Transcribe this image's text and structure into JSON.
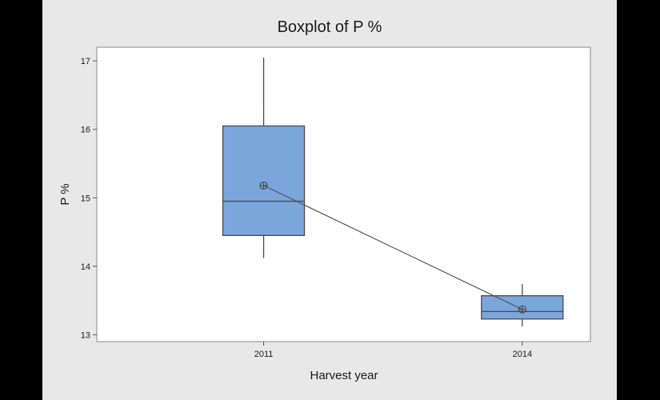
{
  "chart_data": {
    "type": "box",
    "title": "Boxplot of P %",
    "xlabel": "Harvest year",
    "ylabel": "P %",
    "categories": [
      "2011",
      "2014"
    ],
    "ylim": [
      12.9,
      17.2
    ],
    "yticks": [
      "13",
      "14",
      "15",
      "16",
      "17"
    ],
    "boxes": [
      {
        "category": "2011",
        "whisker_low": 14.12,
        "q1": 14.45,
        "median": 14.95,
        "q3": 16.05,
        "whisker_high": 17.05,
        "mean": 15.18
      },
      {
        "category": "2014",
        "whisker_low": 13.12,
        "q1": 13.23,
        "median": 13.34,
        "q3": 13.57,
        "whisker_high": 13.74,
        "mean": 13.37
      }
    ],
    "mean_connect_line": true,
    "grid": false,
    "colors": {
      "box_fill": "#7ba6db",
      "box_edge": "#4a4a4a",
      "background": "#e8e8e8",
      "plot_area": "#ffffff"
    }
  }
}
